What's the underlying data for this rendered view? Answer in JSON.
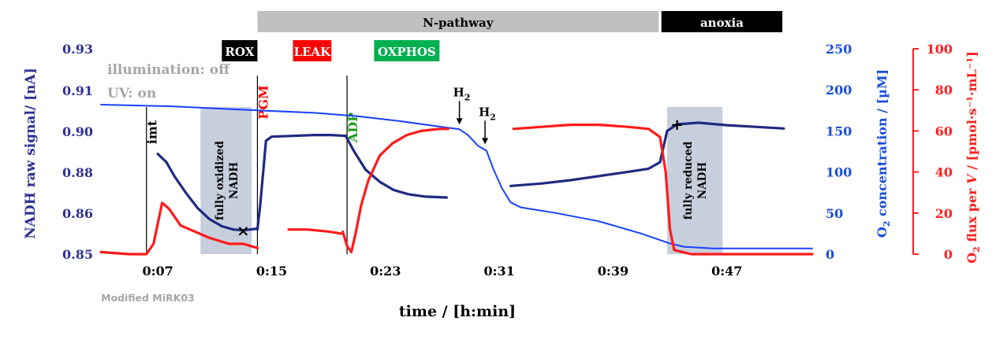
{
  "chart_data": {
    "type": "line",
    "title": "",
    "xlabel": "time / [h:min]",
    "x_ticks": [
      {
        "min": 7,
        "label": "0:07"
      },
      {
        "min": 15,
        "label": "0:15"
      },
      {
        "min": 23,
        "label": "0:23"
      },
      {
        "min": 31,
        "label": "0:31"
      },
      {
        "min": 39,
        "label": "0:39"
      },
      {
        "min": 47,
        "label": "0:47"
      }
    ],
    "xlim_min": [
      3,
      53
    ],
    "y_left": {
      "label": "NADH raw signal/ [nA]",
      "color": "#2e3192",
      "ticks": [
        "0.85",
        "0.86",
        "0.88",
        "0.90",
        "0.91",
        "0.93"
      ]
    },
    "y_right1": {
      "label_main": "O",
      "label_sub": "2",
      "label_rest": " concentration / [µM]",
      "color": "#1a4ed8",
      "ticks": [
        0,
        50,
        100,
        150,
        200,
        250
      ],
      "range": [
        0,
        250
      ]
    },
    "y_right2": {
      "label_main": "O",
      "label_sub": "2",
      "label_rest": " flux per ",
      "label_italic": "V",
      "label_tail": " / [pmol·s⁻¹·mL⁻¹]",
      "color": "#ff2020",
      "ticks": [
        0,
        20,
        40,
        60,
        80,
        100
      ],
      "range": [
        0,
        100
      ]
    },
    "phases": [
      {
        "label": "N-pathway",
        "start": 14.0,
        "end": 42.2,
        "color": "#bfbfbf",
        "text_color": "#000000"
      },
      {
        "label": "anoxia",
        "start": 42.4,
        "end": 50.9,
        "color": "#000000",
        "text_color": "#ffffff"
      }
    ],
    "states": [
      {
        "label": "ROX",
        "start": 11.5,
        "end": 14.0,
        "color": "#000000",
        "text_color": "#ffffff"
      },
      {
        "label": "LEAK",
        "start": 16.5,
        "end": 19.2,
        "color": "#ff0000",
        "text_color": "#ffffff"
      },
      {
        "label": "OXPHOS",
        "start": 22.2,
        "end": 26.8,
        "color": "#00b050",
        "text_color": "#ffffff"
      }
    ],
    "top_left_notes": [
      "illumination: off",
      "UV: on"
    ],
    "note_color": "#a6a6a6",
    "footnote": "Modified MiRK03",
    "event_lines": [
      {
        "min": 6.2,
        "label": "imt",
        "color": "#000000"
      },
      {
        "min": 14.0,
        "label": "PGM",
        "color": "#ff0000"
      },
      {
        "min": 20.3,
        "label": "ADP",
        "color": "#1c9a1c"
      }
    ],
    "arrows": [
      {
        "min": 28.2,
        "label": "H",
        "sub": "2",
        "o2": 152
      },
      {
        "min": 30.0,
        "label": "H",
        "sub": "2",
        "o2": 128
      }
    ],
    "shaded_boxes": [
      {
        "start": 10.0,
        "end": 13.6,
        "label_lines": [
          "fully oxidized",
          "NADH"
        ]
      },
      {
        "start": 42.8,
        "end": 46.7,
        "label_lines": [
          "fully reduced",
          "NADH"
        ]
      }
    ],
    "markers": [
      {
        "type": "x",
        "min": 13.0,
        "o2": 28,
        "symbol": "×"
      },
      {
        "type": "plus",
        "min": 43.5,
        "o2": 157,
        "symbol": "+"
      }
    ],
    "series": [
      {
        "name": "NADH",
        "color": "#1f2a80",
        "axis": "nadh",
        "segments": [
          [
            [
              7.0,
              122
            ],
            [
              7.6,
              112
            ],
            [
              8.2,
              94
            ],
            [
              9.0,
              74
            ],
            [
              9.8,
              56
            ],
            [
              10.6,
              43
            ],
            [
              11.5,
              34
            ],
            [
              12.3,
              30
            ],
            [
              13.0,
              29
            ],
            [
              14.0,
              31
            ]
          ],
          [
            [
              14.0,
              30
            ],
            [
              14.2,
              60
            ],
            [
              14.6,
              138
            ],
            [
              15.0,
              143
            ],
            [
              16.5,
              144
            ],
            [
              18.0,
              145
            ],
            [
              19.2,
              145
            ],
            [
              20.2,
              144
            ]
          ],
          [
            [
              20.2,
              144
            ],
            [
              20.8,
              125
            ],
            [
              21.6,
              103
            ],
            [
              22.6,
              88
            ],
            [
              23.6,
              78
            ],
            [
              24.6,
              73
            ],
            [
              25.8,
              70
            ],
            [
              27.3,
              69
            ]
          ],
          [
            [
              31.8,
              83
            ],
            [
              34.0,
              86
            ],
            [
              36.0,
              90
            ],
            [
              38.0,
              95
            ],
            [
              40.0,
              100
            ],
            [
              41.5,
              104
            ],
            [
              42.3,
              112
            ],
            [
              42.8,
              150
            ],
            [
              43.5,
              158
            ],
            [
              45.0,
              160
            ],
            [
              47.0,
              157
            ],
            [
              49.0,
              155
            ],
            [
              51.0,
              153
            ]
          ]
        ]
      },
      {
        "name": "O2 concentration",
        "color": "#1a40ff",
        "axis": "o2",
        "segments": [
          [
            [
              3.0,
              182
            ],
            [
              8.0,
              180
            ],
            [
              14.0,
              175
            ],
            [
              18.0,
              172
            ],
            [
              21.0,
              168
            ],
            [
              24.0,
              162
            ],
            [
              26.5,
              156
            ],
            [
              28.2,
              152
            ],
            [
              28.8,
              145
            ],
            [
              29.5,
              132
            ],
            [
              30.1,
              126
            ],
            [
              30.6,
              103
            ],
            [
              31.2,
              80
            ],
            [
              31.8,
              63
            ],
            [
              32.5,
              57
            ],
            [
              35.0,
              50
            ],
            [
              38.0,
              40
            ],
            [
              41.0,
              25
            ],
            [
              43.0,
              13
            ],
            [
              44.0,
              9
            ],
            [
              46.0,
              7
            ],
            [
              53.0,
              7
            ]
          ]
        ]
      },
      {
        "name": "O2 flux",
        "color": "#ff1a1a",
        "axis": "flux",
        "segments": [
          [
            [
              3.0,
              1
            ],
            [
              5.0,
              0
            ],
            [
              6.2,
              0
            ],
            [
              6.7,
              5
            ],
            [
              7.3,
              25
            ],
            [
              7.8,
              22
            ],
            [
              8.6,
              14
            ],
            [
              9.6,
              11
            ],
            [
              10.6,
              8
            ],
            [
              12.0,
              5
            ],
            [
              13.0,
              5
            ],
            [
              14.0,
              3
            ]
          ],
          [
            [
              16.2,
              12
            ],
            [
              17.5,
              12
            ],
            [
              19.0,
              11
            ],
            [
              19.9,
              10
            ]
          ],
          [
            [
              20.0,
              11
            ],
            [
              20.3,
              4
            ],
            [
              20.6,
              1
            ],
            [
              20.9,
              10
            ],
            [
              21.3,
              24
            ],
            [
              21.8,
              36
            ],
            [
              22.6,
              48
            ],
            [
              23.5,
              54
            ],
            [
              24.5,
              58
            ],
            [
              25.5,
              60
            ],
            [
              26.8,
              61
            ],
            [
              27.4,
              61
            ]
          ],
          [
            [
              32.0,
              61
            ],
            [
              34.0,
              62
            ],
            [
              36.0,
              63
            ],
            [
              38.0,
              63
            ],
            [
              40.0,
              62
            ],
            [
              41.5,
              61
            ],
            [
              42.3,
              57
            ],
            [
              42.7,
              40
            ],
            [
              43.0,
              12
            ],
            [
              43.3,
              2
            ],
            [
              44.5,
              0
            ],
            [
              53.0,
              0
            ]
          ]
        ]
      }
    ]
  }
}
